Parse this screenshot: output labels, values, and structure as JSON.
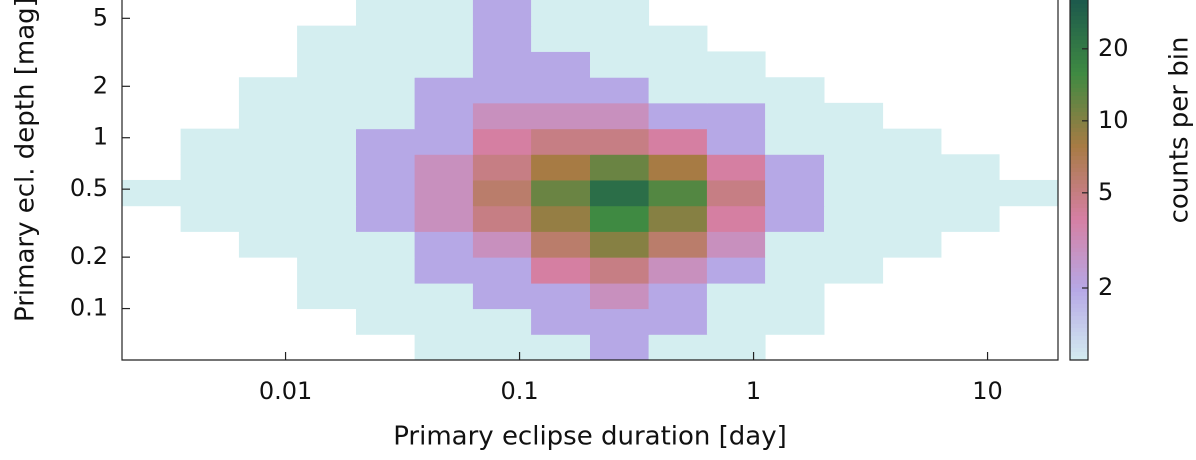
{
  "chart_data": {
    "type": "heatmap",
    "xlabel": "Primary eclipse duration  [day]",
    "ylabel": "Primary ecl. depth  [mag]",
    "x_log": true,
    "y_log": true,
    "xlim": [
      0.002,
      20
    ],
    "ylim": [
      0.05,
      6.4
    ],
    "xticks": [
      0.01,
      0.1,
      1,
      10
    ],
    "yticks": [
      0.1,
      0.2,
      0.5,
      1,
      2,
      5
    ],
    "x_edges": [
      0.002,
      0.00356,
      0.00632,
      0.0112,
      0.02,
      0.0356,
      0.0632,
      0.112,
      0.2,
      0.356,
      0.632,
      1.12,
      2,
      3.56,
      6.32,
      11.2,
      20
    ],
    "y_edges": [
      0.05,
      0.0707,
      0.1,
      0.141,
      0.2,
      0.283,
      0.4,
      0.566,
      0.8,
      1.13,
      1.6,
      2.26,
      3.2,
      4.53,
      6.4
    ],
    "z": [
      [
        0,
        0,
        0,
        0,
        0,
        1,
        1,
        1,
        2,
        1,
        1,
        0,
        0,
        0,
        0,
        0
      ],
      [
        0,
        0,
        0,
        0,
        1,
        1,
        1,
        2,
        2,
        2,
        1,
        1,
        0,
        0,
        0,
        0
      ],
      [
        0,
        0,
        0,
        1,
        1,
        1,
        2,
        2,
        3,
        2,
        1,
        1,
        0,
        0,
        0,
        0
      ],
      [
        0,
        0,
        0,
        1,
        1,
        2,
        2,
        4,
        5,
        3,
        2,
        1,
        1,
        0,
        0,
        0
      ],
      [
        0,
        0,
        1,
        1,
        1,
        2,
        3,
        6,
        10,
        6,
        3,
        1,
        1,
        1,
        0,
        0
      ],
      [
        0,
        1,
        1,
        1,
        2,
        3,
        5,
        9,
        16,
        10,
        4,
        2,
        1,
        1,
        1,
        0
      ],
      [
        1,
        1,
        1,
        1,
        2,
        3,
        6,
        12,
        24,
        14,
        5,
        2,
        1,
        1,
        1,
        1
      ],
      [
        0,
        1,
        1,
        1,
        2,
        3,
        5,
        8,
        12,
        8,
        4,
        2,
        1,
        1,
        1,
        0
      ],
      [
        0,
        1,
        1,
        1,
        2,
        2,
        4,
        5,
        5,
        4,
        2,
        1,
        1,
        1,
        0,
        0
      ],
      [
        0,
        0,
        1,
        1,
        1,
        2,
        3,
        3,
        3,
        2,
        2,
        1,
        1,
        0,
        0,
        0
      ],
      [
        0,
        0,
        1,
        1,
        1,
        2,
        2,
        2,
        2,
        1,
        1,
        1,
        0,
        0,
        0,
        0
      ],
      [
        0,
        0,
        0,
        1,
        1,
        1,
        2,
        2,
        1,
        1,
        1,
        0,
        0,
        0,
        0,
        0
      ],
      [
        0,
        0,
        0,
        1,
        1,
        1,
        2,
        1,
        1,
        1,
        0,
        0,
        0,
        0,
        0,
        0
      ],
      [
        0,
        0,
        0,
        0,
        1,
        1,
        2,
        1,
        1,
        0,
        0,
        0,
        0,
        0,
        0,
        0
      ]
    ],
    "colorbar_label": "counts per bin",
    "clim": [
      1,
      32
    ],
    "cticks": [
      2,
      5,
      10,
      20
    ],
    "colormap": [
      "#d4eef0",
      "#b6a8e6",
      "#d57fa2",
      "#a77b44",
      "#3f8a42",
      "#1d5a4c"
    ]
  }
}
